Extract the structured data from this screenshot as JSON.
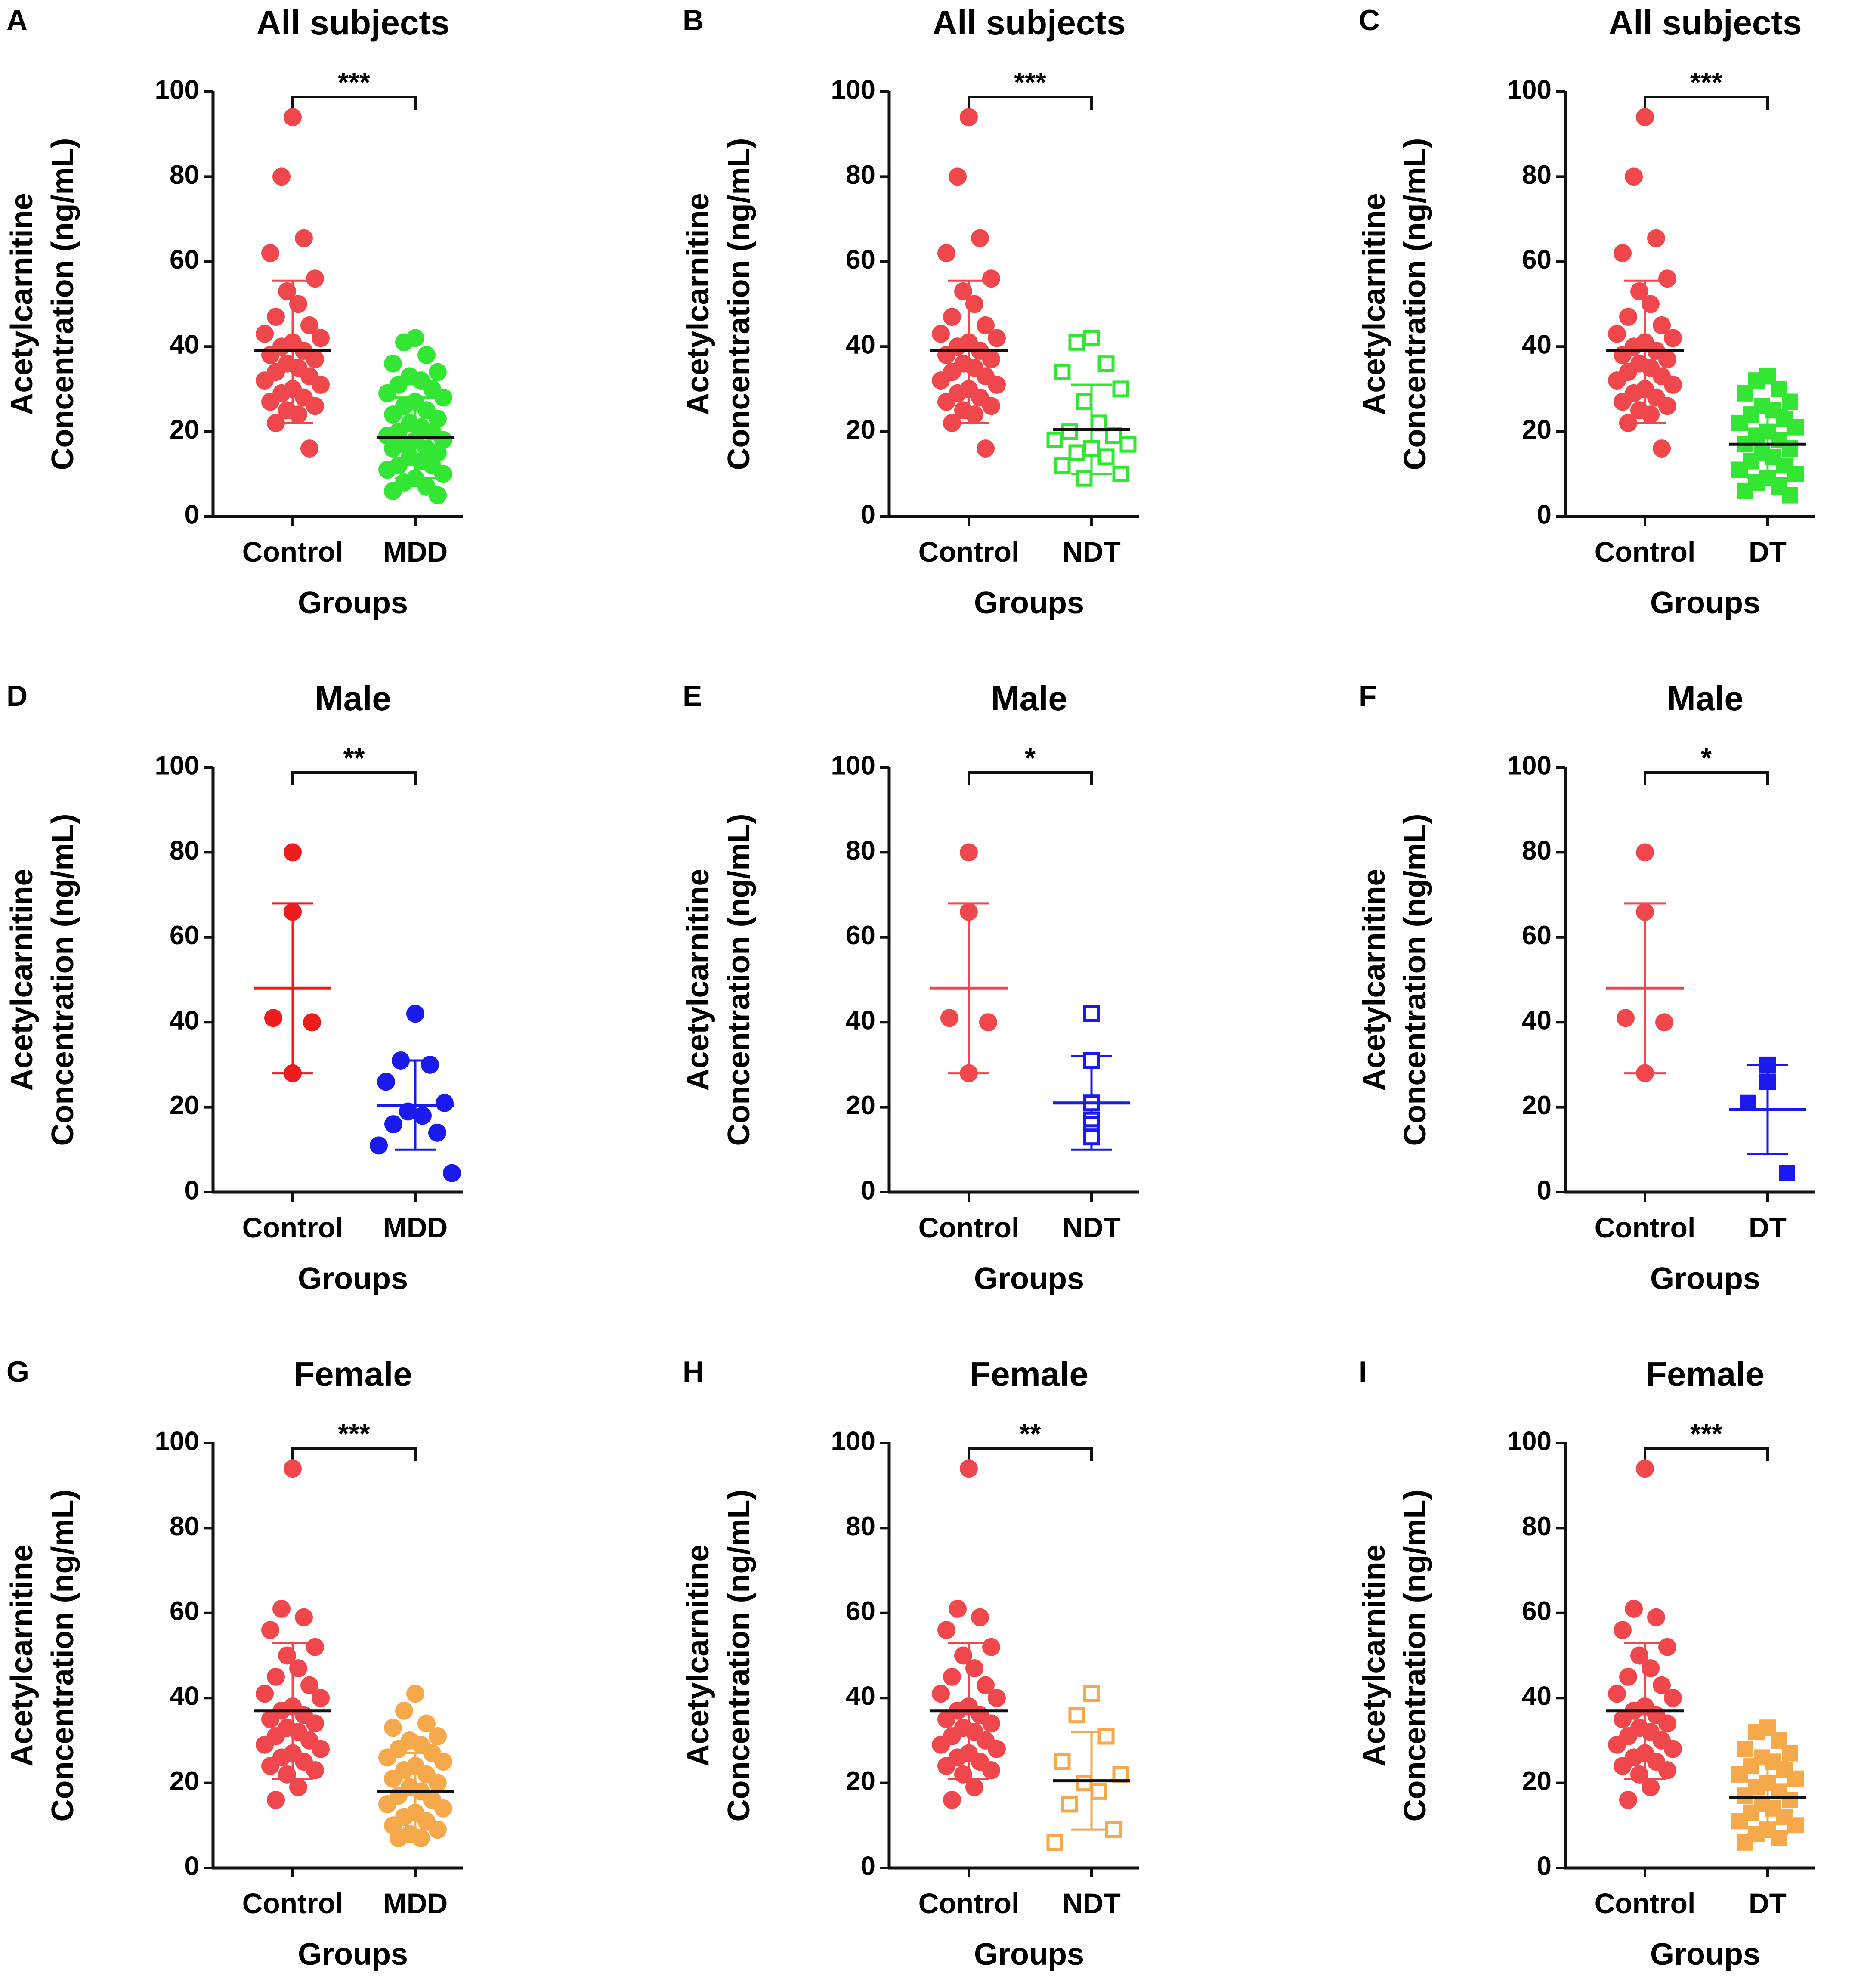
{
  "y_label_line1": "Acetylcarnitine",
  "y_label_line2": "Concentration (ng/mL)",
  "colors": {
    "control": "#f0474d",
    "control_mean_line": "#111111",
    "axis": "#111111",
    "green": "#33e633",
    "blue": "#1a1aee",
    "orange": "#f5a94a"
  },
  "chart_data": [
    {
      "panel": "A",
      "type": "scatter",
      "title": "All subjects",
      "xlabel": "Groups",
      "ylabel": "Acetylcarnitine Concentration (ng/mL)",
      "ylim": [
        0,
        100
      ],
      "yticks": [
        "0",
        "20",
        "40",
        "60",
        "80",
        "100"
      ],
      "significance": "***",
      "groups": [
        {
          "name": "Control",
          "marker": "circle-filled",
          "color": "#f0474d",
          "mean": 39,
          "sd_low": 22,
          "sd_high": 55.5,
          "values": [
            94,
            80,
            65.5,
            62,
            56,
            53,
            50,
            47,
            45,
            43,
            42,
            41,
            40,
            39,
            38,
            37,
            36,
            35,
            34,
            33,
            32,
            31,
            30,
            29,
            28,
            27,
            26,
            25,
            24,
            22,
            16
          ]
        },
        {
          "name": "MDD",
          "marker": "circle-filled",
          "color": "#33e633",
          "mean": 18.5,
          "sd_low": 9,
          "sd_high": 28,
          "values": [
            42,
            41,
            38,
            36,
            34,
            33,
            32,
            31,
            30,
            29,
            28,
            27,
            26,
            25,
            24,
            23,
            22,
            21,
            20,
            20,
            19,
            18,
            18,
            17,
            16,
            16,
            15,
            14,
            13,
            12,
            12,
            11,
            10,
            9,
            8,
            7,
            6,
            5
          ]
        }
      ]
    },
    {
      "panel": "B",
      "type": "scatter",
      "title": "All subjects",
      "xlabel": "Groups",
      "ylabel": "Acetylcarnitine Concentration (ng/mL)",
      "ylim": [
        0,
        100
      ],
      "yticks": [
        "0",
        "20",
        "40",
        "60",
        "80",
        "100"
      ],
      "significance": "***",
      "groups": [
        {
          "name": "Control",
          "marker": "circle-filled",
          "color": "#f0474d",
          "mean": 39,
          "sd_low": 22,
          "sd_high": 55.5,
          "values": [
            94,
            80,
            65.5,
            62,
            56,
            53,
            50,
            47,
            45,
            43,
            42,
            41,
            40,
            39,
            38,
            37,
            36,
            35,
            34,
            33,
            32,
            31,
            30,
            29,
            28,
            27,
            26,
            25,
            24,
            22,
            16
          ]
        },
        {
          "name": "NDT",
          "marker": "square-open",
          "color": "#33e633",
          "mean": 20.5,
          "sd_low": 10,
          "sd_high": 31,
          "values": [
            42,
            41,
            36,
            34,
            30,
            27,
            22,
            20,
            19,
            18,
            17,
            16,
            15,
            14,
            12,
            10,
            9
          ]
        }
      ]
    },
    {
      "panel": "C",
      "type": "scatter",
      "title": "All subjects",
      "xlabel": "Groups",
      "ylabel": "Acetylcarnitine Concentration (ng/mL)",
      "ylim": [
        0,
        100
      ],
      "yticks": [
        "0",
        "20",
        "40",
        "60",
        "80",
        "100"
      ],
      "significance": "***",
      "groups": [
        {
          "name": "Control",
          "marker": "circle-filled",
          "color": "#f0474d",
          "mean": 39,
          "sd_low": 22,
          "sd_high": 55.5,
          "values": [
            94,
            80,
            65.5,
            62,
            56,
            53,
            50,
            47,
            45,
            43,
            42,
            41,
            40,
            39,
            38,
            37,
            36,
            35,
            34,
            33,
            32,
            31,
            30,
            29,
            28,
            27,
            26,
            25,
            24,
            22,
            16
          ]
        },
        {
          "name": "DT",
          "marker": "square-filled",
          "color": "#33e633",
          "mean": 17,
          "sd_low": 9,
          "sd_high": 25,
          "values": [
            33,
            32,
            30,
            29,
            27,
            26,
            25,
            24,
            23,
            22,
            21,
            20,
            19,
            18,
            17,
            16,
            15,
            14,
            13,
            12,
            11,
            10,
            9,
            8,
            7,
            6,
            5
          ]
        }
      ]
    },
    {
      "panel": "D",
      "type": "scatter",
      "title": "Male",
      "xlabel": "Groups",
      "ylabel": "Acetylcarnitine Concentration (ng/mL)",
      "ylim": [
        0,
        100
      ],
      "yticks": [
        "0",
        "20",
        "40",
        "60",
        "80",
        "100"
      ],
      "significance": "**",
      "groups": [
        {
          "name": "Control",
          "marker": "circle-filled",
          "color": "#ee1c1c",
          "mean": 48,
          "sd_low": 28,
          "sd_high": 68,
          "mean_line_color": "#ee1c1c",
          "values": [
            80,
            66,
            41,
            40,
            28
          ]
        },
        {
          "name": "MDD",
          "marker": "circle-filled",
          "color": "#1a1aee",
          "mean": 20.5,
          "sd_low": 10,
          "sd_high": 31,
          "mean_line_color": "#1a1aee",
          "values": [
            42,
            31,
            30,
            26,
            21,
            19,
            18,
            16,
            14,
            11,
            4.5
          ]
        }
      ]
    },
    {
      "panel": "E",
      "type": "scatter",
      "title": "Male",
      "xlabel": "Groups",
      "ylabel": "Acetylcarnitine Concentration (ng/mL)",
      "ylim": [
        0,
        100
      ],
      "yticks": [
        "0",
        "20",
        "40",
        "60",
        "80",
        "100"
      ],
      "significance": "*",
      "groups": [
        {
          "name": "Control",
          "marker": "circle-filled",
          "color": "#f0474d",
          "mean": 48,
          "sd_low": 28,
          "sd_high": 68,
          "mean_line_color": "#f0474d",
          "values": [
            80,
            66,
            41,
            40,
            28
          ]
        },
        {
          "name": "NDT",
          "marker": "square-open",
          "color": "#1a1aee",
          "mean": 21,
          "sd_low": 10,
          "sd_high": 32,
          "mean_line_color": "#1a1aee",
          "values": [
            42,
            31,
            21,
            17,
            16,
            14,
            13
          ]
        }
      ]
    },
    {
      "panel": "F",
      "type": "scatter",
      "title": "Male",
      "xlabel": "Groups",
      "ylabel": "Acetylcarnitine Concentration (ng/mL)",
      "ylim": [
        0,
        100
      ],
      "yticks": [
        "0",
        "20",
        "40",
        "60",
        "80",
        "100"
      ],
      "significance": "*",
      "groups": [
        {
          "name": "Control",
          "marker": "circle-filled",
          "color": "#f0474d",
          "mean": 48,
          "sd_low": 28,
          "sd_high": 68,
          "mean_line_color": "#f0474d",
          "values": [
            80,
            66,
            41,
            40,
            28
          ]
        },
        {
          "name": "DT",
          "marker": "square-filled",
          "color": "#1a1aee",
          "mean": 19.5,
          "sd_low": 9,
          "sd_high": 30,
          "mean_line_color": "#1a1aee",
          "values": [
            30,
            26,
            21,
            4.5
          ]
        }
      ]
    },
    {
      "panel": "G",
      "type": "scatter",
      "title": "Female",
      "xlabel": "Groups",
      "ylabel": "Acetylcarnitine Concentration (ng/mL)",
      "ylim": [
        0,
        100
      ],
      "yticks": [
        "0",
        "20",
        "40",
        "60",
        "80",
        "100"
      ],
      "significance": "***",
      "groups": [
        {
          "name": "Control",
          "marker": "circle-filled",
          "color": "#f0474d",
          "mean": 37,
          "sd_low": 21,
          "sd_high": 53,
          "values": [
            94,
            61,
            59,
            56,
            52,
            50,
            47,
            45,
            43,
            41,
            40,
            38,
            37,
            36,
            35,
            34,
            33,
            32,
            31,
            30,
            29,
            28,
            27,
            26,
            25,
            24,
            23,
            22,
            19,
            16
          ]
        },
        {
          "name": "MDD",
          "marker": "circle-filled",
          "color": "#f5a94a",
          "mean": 18,
          "sd_low": 9,
          "sd_high": 27,
          "values": [
            41,
            37,
            34,
            33,
            31,
            30,
            29,
            28,
            27,
            26,
            25,
            24,
            23,
            22,
            21,
            20,
            19,
            18,
            17,
            16,
            15,
            14,
            13,
            12,
            11,
            10,
            9,
            8,
            7,
            7
          ]
        }
      ]
    },
    {
      "panel": "H",
      "type": "scatter",
      "title": "Female",
      "xlabel": "Groups",
      "ylabel": "Acetylcarnitine Concentration (ng/mL)",
      "ylim": [
        0,
        100
      ],
      "yticks": [
        "0",
        "20",
        "40",
        "60",
        "80",
        "100"
      ],
      "significance": "**",
      "groups": [
        {
          "name": "Control",
          "marker": "circle-filled",
          "color": "#f0474d",
          "mean": 37,
          "sd_low": 21,
          "sd_high": 53,
          "values": [
            94,
            61,
            59,
            56,
            52,
            50,
            47,
            45,
            43,
            41,
            40,
            38,
            37,
            36,
            35,
            34,
            33,
            32,
            31,
            30,
            29,
            28,
            27,
            26,
            25,
            24,
            23,
            22,
            19,
            16
          ]
        },
        {
          "name": "NDT",
          "marker": "square-open",
          "color": "#f5a94a",
          "mean": 20.5,
          "sd_low": 9,
          "sd_high": 32,
          "values": [
            41,
            36,
            31,
            25,
            22,
            20,
            18,
            15,
            9,
            6
          ]
        }
      ]
    },
    {
      "panel": "I",
      "type": "scatter",
      "title": "Female",
      "xlabel": "Groups",
      "ylabel": "Acetylcarnitine Concentration (ng/mL)",
      "ylim": [
        0,
        100
      ],
      "yticks": [
        "0",
        "20",
        "40",
        "60",
        "80",
        "100"
      ],
      "significance": "***",
      "groups": [
        {
          "name": "Control",
          "marker": "circle-filled",
          "color": "#f0474d",
          "mean": 37,
          "sd_low": 21,
          "sd_high": 53,
          "values": [
            94,
            61,
            59,
            56,
            52,
            50,
            47,
            45,
            43,
            41,
            40,
            38,
            37,
            36,
            35,
            34,
            33,
            32,
            31,
            30,
            29,
            28,
            27,
            26,
            25,
            24,
            23,
            22,
            19,
            16
          ]
        },
        {
          "name": "DT",
          "marker": "square-filled",
          "color": "#f5a94a",
          "mean": 16.5,
          "sd_low": 8,
          "sd_high": 25,
          "values": [
            33,
            32,
            30,
            28,
            27,
            26,
            25,
            24,
            23,
            22,
            21,
            20,
            19,
            18,
            17,
            16,
            15,
            14,
            13,
            12,
            11,
            10,
            9,
            8,
            7,
            6
          ]
        }
      ]
    }
  ]
}
